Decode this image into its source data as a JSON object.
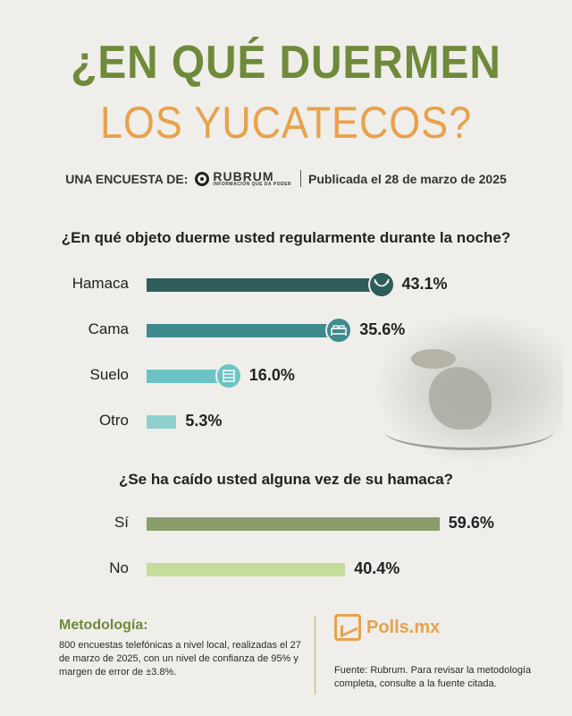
{
  "header": {
    "title_line1": "¿EN QUÉ DUERMEN",
    "title_line2": "LOS YUCATECOS?",
    "survey_by": "UNA ENCUESTA DE:",
    "brand": "RUBRUM",
    "brand_tagline": "INFORMACIÓN QUE DA PODER",
    "published": "Publicada el 28 de marzo de 2025"
  },
  "colors": {
    "accent_green": "#6f8a3a",
    "accent_orange": "#e8a24c",
    "bar_hamaca": "#2f5d5a",
    "bar_cama": "#3f8a8c",
    "bar_suelo": "#6cc3c6",
    "bar_otro": "#8fcfcd",
    "bar_si": "#8a9e6c",
    "bar_no": "#c5dd9a"
  },
  "chart_data": [
    {
      "type": "bar",
      "orientation": "horizontal",
      "title": "¿En qué objeto duerme usted regularmente durante la noche?",
      "categories": [
        "Hamaca",
        "Cama",
        "Suelo",
        "Otro"
      ],
      "values": [
        43.1,
        35.6,
        16.0,
        5.3
      ],
      "value_labels": [
        "43.1%",
        "35.6%",
        "16.0%",
        "5.3%"
      ],
      "icons": [
        "hammock-icon",
        "bed-icon",
        "mat-icon",
        ""
      ],
      "colors": [
        "#2f5d5a",
        "#3f8a8c",
        "#6cc3c6",
        "#8fcfcd"
      ],
      "xlim": [
        0,
        100
      ],
      "grid": false
    },
    {
      "type": "bar",
      "orientation": "horizontal",
      "title": "¿Se ha caído usted alguna vez de su hamaca?",
      "categories": [
        "Sí",
        "No"
      ],
      "values": [
        59.6,
        40.4
      ],
      "value_labels": [
        "59.6%",
        "40.4%"
      ],
      "colors": [
        "#8a9e6c",
        "#c5dd9a"
      ],
      "xlim": [
        0,
        100
      ],
      "grid": false
    }
  ],
  "footer": {
    "methodology_title": "Metodología:",
    "methodology_text": "800 encuestas telefónicas a nivel local, realizadas el 27 de marzo de 2025, con un nivel de confianza de 95% y margen de error de ±3.8%.",
    "brand": "Polls.mx",
    "source_text": "Fuente: Rubrum. Para revisar la metodología completa, consulte a la fuente citada."
  }
}
